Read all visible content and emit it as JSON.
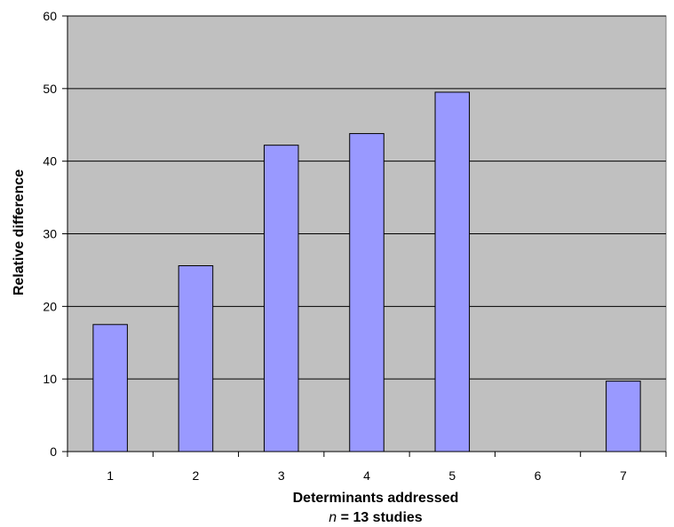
{
  "chart_data": {
    "type": "bar",
    "categories": [
      "1",
      "2",
      "3",
      "4",
      "5",
      "6",
      "7"
    ],
    "values": [
      17.5,
      25.6,
      42.2,
      43.8,
      49.5,
      0,
      9.7
    ],
    "xlabel": "Determinants addressed",
    "xlabel_note_var": "n",
    "xlabel_note_rest": " = 13 studies",
    "ylabel": "Relative difference",
    "ylim": [
      0,
      60
    ],
    "yticks": [
      "0",
      "10",
      "20",
      "30",
      "40",
      "50",
      "60"
    ],
    "grid": true,
    "colors": {
      "bar": "#9999ff",
      "plot_background": "#c0c0c0",
      "gridline": "#000000"
    }
  }
}
